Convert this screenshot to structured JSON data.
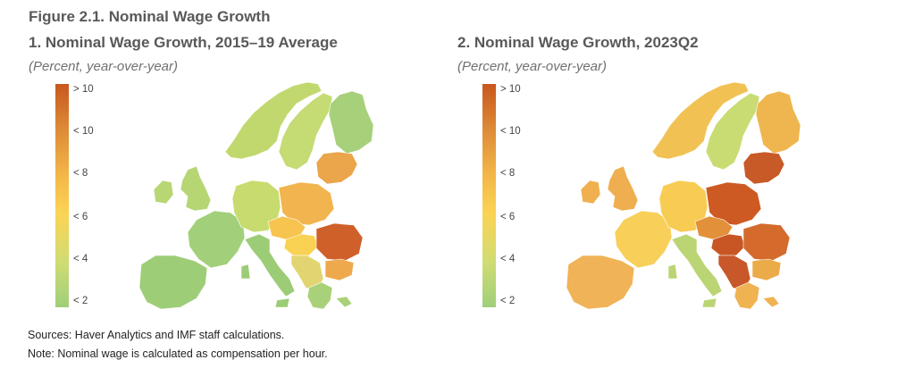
{
  "figure_title": "Figure 2.1. Nominal Wage Growth",
  "panels": [
    {
      "title": "1. Nominal Wage Growth, 2015–19 Average",
      "subtitle": "(Percent, year-over-year)",
      "legend_ticks": [
        "> 10",
        "< 10",
        "< 8",
        "< 6",
        "< 4",
        "< 2"
      ],
      "regions": [
        {
          "name": "iberia",
          "color": "#9ecd77"
        },
        {
          "name": "france",
          "color": "#a2d07a"
        },
        {
          "name": "italy",
          "color": "#9ccc76"
        },
        {
          "name": "uk",
          "color": "#b5d673"
        },
        {
          "name": "ireland",
          "color": "#b8d674"
        },
        {
          "name": "norway",
          "color": "#c1d86f"
        },
        {
          "name": "sweden",
          "color": "#c5db74"
        },
        {
          "name": "finland",
          "color": "#a7d07a"
        },
        {
          "name": "germany",
          "color": "#c8db6e"
        },
        {
          "name": "poland",
          "color": "#f2b44e"
        },
        {
          "name": "baltics",
          "color": "#eba54a"
        },
        {
          "name": "czech",
          "color": "#f6c44f"
        },
        {
          "name": "hungary",
          "color": "#f9d253"
        },
        {
          "name": "romania",
          "color": "#d0602a"
        },
        {
          "name": "bulgaria",
          "color": "#efa94d"
        },
        {
          "name": "balkans",
          "color": "#e2d571"
        },
        {
          "name": "greece",
          "color": "#a9d17a"
        }
      ]
    },
    {
      "title": "2. Nominal Wage Growth, 2023Q2",
      "subtitle": "(Percent, year-over-year)",
      "legend_ticks": [
        "> 10",
        "< 10",
        "< 8",
        "< 6",
        "< 4",
        "< 2"
      ],
      "regions": [
        {
          "name": "iberia",
          "color": "#f0b357"
        },
        {
          "name": "france",
          "color": "#f8cf58"
        },
        {
          "name": "italy",
          "color": "#bbd474"
        },
        {
          "name": "uk",
          "color": "#efae50"
        },
        {
          "name": "ireland",
          "color": "#f0b04f"
        },
        {
          "name": "norway",
          "color": "#f2c153"
        },
        {
          "name": "sweden",
          "color": "#c9dc73"
        },
        {
          "name": "finland",
          "color": "#efb64f"
        },
        {
          "name": "germany",
          "color": "#f8cb53"
        },
        {
          "name": "poland",
          "color": "#cd5a23"
        },
        {
          "name": "baltics",
          "color": "#c85a27"
        },
        {
          "name": "czech",
          "color": "#e3903b"
        },
        {
          "name": "hungary",
          "color": "#c75624"
        },
        {
          "name": "romania",
          "color": "#d46a2b"
        },
        {
          "name": "bulgaria",
          "color": "#ebab48"
        },
        {
          "name": "balkans",
          "color": "#c8572a"
        },
        {
          "name": "greece",
          "color": "#efb352"
        }
      ]
    }
  ],
  "sources": "Sources: Haver Analytics and IMF staff calculations.",
  "note": "Note: Nominal wage is calculated as compensation per hour."
}
